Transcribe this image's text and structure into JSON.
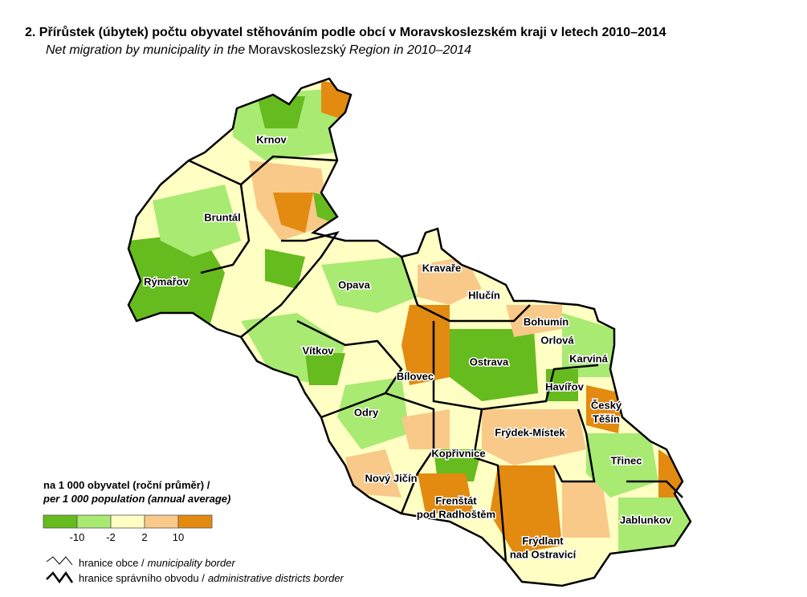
{
  "header": {
    "title": "2. Přírůstek (úbytek) počtu obyvatel stěhováním podle obcí v Moravskoslezském kraji v letech 2010–2014",
    "subtitle": [
      "Net migration by municipality in the",
      "Moravskoslezský",
      "Region in 2010–2014"
    ]
  },
  "map": {
    "cities": [
      {
        "lines": [
          "Krnov"
        ]
      },
      {
        "lines": [
          "Bruntál"
        ]
      },
      {
        "lines": [
          "Rýmařov"
        ]
      },
      {
        "lines": [
          "Opava"
        ]
      },
      {
        "lines": [
          "Kravaře"
        ]
      },
      {
        "lines": [
          "Hlučín"
        ]
      },
      {
        "lines": [
          "Bohumín"
        ]
      },
      {
        "lines": [
          "Orlová"
        ]
      },
      {
        "lines": [
          "Karviná"
        ]
      },
      {
        "lines": [
          "Ostrava"
        ]
      },
      {
        "lines": [
          "Vítkov"
        ]
      },
      {
        "lines": [
          "Bílovec"
        ]
      },
      {
        "lines": [
          "Havířov"
        ]
      },
      {
        "lines": [
          "Český",
          "Těšín"
        ]
      },
      {
        "lines": [
          "Odry"
        ]
      },
      {
        "lines": [
          "Frýdek-Místek"
        ]
      },
      {
        "lines": [
          "Kopřivnice"
        ]
      },
      {
        "lines": [
          "Třinec"
        ]
      },
      {
        "lines": [
          "Nový Jičín"
        ]
      },
      {
        "lines": [
          "Frenštát",
          "pod Radhoštěm"
        ]
      },
      {
        "lines": [
          "Jablunkov"
        ]
      },
      {
        "lines": [
          "Frýdlant",
          "nad Ostravicí"
        ]
      }
    ]
  },
  "legend": {
    "title": [
      "na 1 000 obyvatel (roční průměr) /",
      "per 1 000 population (annual average)"
    ],
    "colors": [
      "#66bb1e",
      "#a9ea72",
      "#ffffc4",
      "#f9c98a",
      "#e38a10"
    ],
    "ticks": [
      -10,
      -2,
      2,
      10
    ],
    "borders": [
      [
        "hranice obce /",
        "municipality border"
      ],
      [
        "hranice správního obvodu /",
        "administrative districts border"
      ]
    ]
  }
}
